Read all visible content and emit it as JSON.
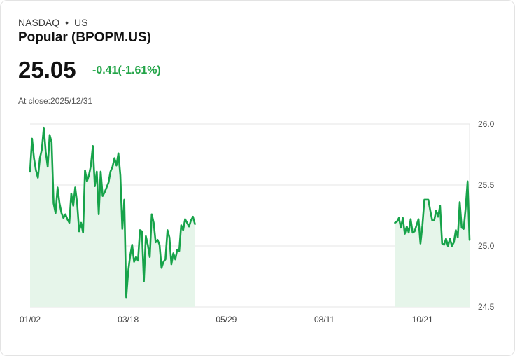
{
  "header": {
    "exchange": "NASDAQ",
    "separator": "•",
    "country": "US",
    "title": "Popular (BPOPM.US)",
    "price": "25.05",
    "change": "-0.41(-1.61%)",
    "close_label": "At close:",
    "close_date": "2025/12/31"
  },
  "colors": {
    "line": "#17a34a",
    "fill": "#e6f5ea",
    "change": "#22a447",
    "grid": "#e4e4e4"
  },
  "chart_data": {
    "type": "area",
    "title": "Popular (BPOPM.US)",
    "xlabel": "",
    "ylabel": "",
    "ylim": [
      24.5,
      26.0
    ],
    "yticks": [
      "26.0",
      "25.5",
      "25.0",
      "24.5"
    ],
    "xticks": [
      {
        "label": "01/02",
        "day": 0
      },
      {
        "label": "03/18",
        "day": 50
      },
      {
        "label": "05/29",
        "day": 100
      },
      {
        "label": "08/11",
        "day": 150
      },
      {
        "label": "10/21",
        "day": 200
      }
    ],
    "grid": true,
    "series": [
      {
        "name": "BPOPM.US",
        "segments": [
          {
            "start_day": 0,
            "values": [
              25.61,
              25.88,
              25.72,
              25.62,
              25.56,
              25.72,
              25.79,
              25.97,
              25.77,
              25.65,
              25.91,
              25.85,
              25.35,
              25.27,
              25.48,
              25.35,
              25.27,
              25.23,
              25.26,
              25.22,
              25.19,
              25.43,
              25.33,
              25.48,
              25.35,
              25.12,
              25.19,
              25.11,
              25.62,
              25.53,
              25.58,
              25.66,
              25.82,
              25.49,
              25.61,
              25.26,
              25.61,
              25.41,
              25.44,
              25.48,
              25.52,
              25.61,
              25.65,
              25.72,
              25.66,
              25.76,
              25.58,
              25.14,
              25.38,
              24.58,
              24.79,
              24.92,
              25.01,
              24.87,
              24.91,
              24.88,
              25.13,
              25.12,
              24.71,
              25.08,
              25.01,
              24.91,
              25.26,
              25.19,
              25.03,
              25.05,
              25.01,
              24.82,
              24.87,
              24.89,
              25.13,
              25.07,
              24.85,
              24.94,
              24.89,
              24.97,
              24.96,
              25.17,
              25.13,
              25.22,
              25.19,
              25.16,
              25.21,
              25.24,
              25.18
            ]
          },
          {
            "start_day": 186,
            "values": [
              25.19,
              25.2,
              25.23,
              25.15,
              25.23,
              25.1,
              25.16,
              25.11,
              25.22,
              25.11,
              25.12,
              25.17,
              25.22,
              25.02,
              25.17,
              25.38,
              25.38,
              25.38,
              25.29,
              25.21,
              25.21,
              25.29,
              25.24,
              25.33,
              25.02,
              25.01,
              25.06,
              25.0,
              25.06,
              25.0,
              25.03,
              25.13,
              25.07,
              25.36,
              25.15,
              25.14,
              25.31,
              25.53,
              25.05
            ]
          }
        ]
      }
    ]
  }
}
